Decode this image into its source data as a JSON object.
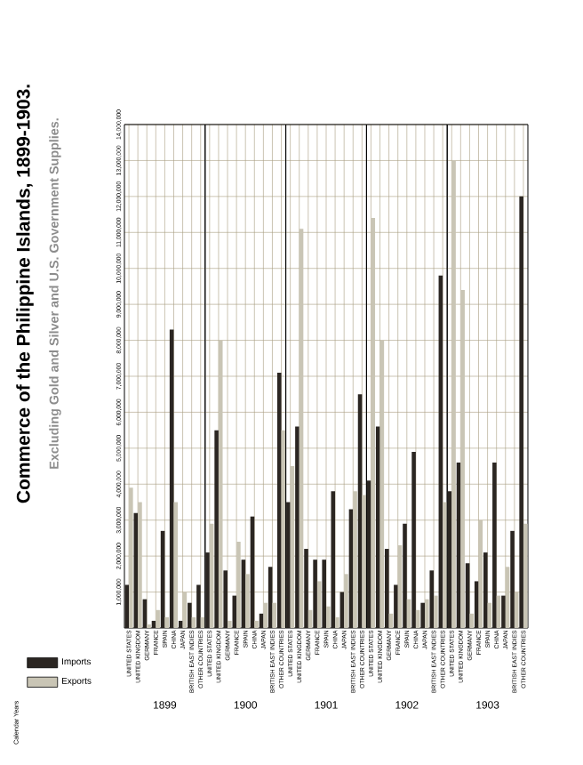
{
  "chart_data": [
    {
      "type": "bar",
      "title": "Commerce of the Philippine Islands, 1899-1903.",
      "subtitle": "Excluding Gold and Silver and U.S. Government Supplies.",
      "annotations": [
        "Calendar Years"
      ],
      "legend": "bottom left",
      "grid": true,
      "xlabel": "1899",
      "categories": [
        "UNITED STATES",
        "UNITED KINGDOM",
        "GERMANY",
        "FRANCE",
        "SPAIN",
        "CHINA",
        "JAPAN",
        "BRITISH EAST INDIES",
        "OTHER COUNTRIES"
      ],
      "series": [
        {
          "name": "Imports",
          "color": "#2b2622",
          "values": [
            1200000,
            3200000,
            800000,
            200000,
            2700000,
            8300000,
            200000,
            700000,
            1200000
          ]
        },
        {
          "name": "Exports",
          "color": "#c9c5b5",
          "values": [
            3900000,
            3500000,
            100000,
            500000,
            300000,
            3500000,
            1000000,
            300000,
            300000
          ]
        }
      ],
      "ylim": [
        0,
        14000000
      ],
      "yticks": [
        {
          "value": 1000000,
          "label": "1,000,000"
        },
        {
          "value": 2000000,
          "label": "2,000,000"
        },
        {
          "value": 3000000,
          "label": "3,000,000"
        },
        {
          "value": 4000000,
          "label": "4,000,000"
        },
        {
          "value": 5000000,
          "label": "5,000,000"
        },
        {
          "value": 6000000,
          "label": "6,000,000"
        },
        {
          "value": 7000000,
          "label": "7,000,000"
        },
        {
          "value": 8000000,
          "label": "8,000,000"
        },
        {
          "value": 9000000,
          "label": "9,000,000"
        },
        {
          "value": 10000000,
          "label": "10,000,000"
        },
        {
          "value": 11000000,
          "label": "11,000,000"
        },
        {
          "value": 12000000,
          "label": "12,000,000"
        },
        {
          "value": 13000000,
          "label": "13,000,000"
        },
        {
          "value": 14000000,
          "label": "14,000,000"
        }
      ]
    },
    {
      "type": "bar",
      "grid": true,
      "xlabel": "1900",
      "tick_labels": "x",
      "categories": [
        "UNITED STATES",
        "UNITED KINGDOM",
        "GERMANY",
        "FRANCE",
        "SPAIN",
        "CHINA",
        "JAPAN",
        "BRITISH EAST INDIES",
        "OTHER COUNTRIES"
      ],
      "series": [
        {
          "color": "#2b2622",
          "values": [
            2100000,
            5500000,
            1600000,
            900000,
            1900000,
            3100000,
            400000,
            1700000,
            7100000
          ]
        },
        {
          "color": "#c9c5b5",
          "values": [
            2900000,
            8000000,
            200000,
            2400000,
            1500000,
            200000,
            700000,
            700000,
            5500000
          ]
        }
      ],
      "ylim": [
        0,
        14000000
      ]
    },
    {
      "type": "bar",
      "grid": true,
      "xlabel": "1901",
      "tick_labels": "x",
      "categories": [
        "UNITED STATES",
        "UNITED KINGDOM",
        "GERMANY",
        "FRANCE",
        "SPAIN",
        "CHINA",
        "JAPAN",
        "BRITISH EAST INDIES",
        "OTHER COUNTRIES"
      ],
      "series": [
        {
          "color": "#2b2622",
          "values": [
            3500000,
            5600000,
            2200000,
            1900000,
            1900000,
            3800000,
            1000000,
            3300000,
            6500000
          ]
        },
        {
          "color": "#c9c5b5",
          "values": [
            4500000,
            11100000,
            500000,
            1300000,
            600000,
            300000,
            1500000,
            3800000,
            3700000
          ]
        }
      ],
      "ylim": [
        0,
        14000000
      ]
    },
    {
      "type": "bar",
      "grid": true,
      "xlabel": "1902",
      "tick_labels": "x",
      "categories": [
        "UNITED STATES",
        "UNITED KINGDOM",
        "GERMANY",
        "FRANCE",
        "SPAIN",
        "CHINA",
        "JAPAN",
        "BRITISH EAST INDIES",
        "OTHER COUNTRIES"
      ],
      "series": [
        {
          "color": "#2b2622",
          "values": [
            4100000,
            5600000,
            2200000,
            1200000,
            2900000,
            4900000,
            700000,
            1600000,
            9800000
          ]
        },
        {
          "color": "#c9c5b5",
          "values": [
            11400000,
            8000000,
            400000,
            2300000,
            800000,
            500000,
            800000,
            900000,
            3500000
          ]
        }
      ],
      "ylim": [
        0,
        14000000
      ]
    },
    {
      "type": "bar",
      "grid": true,
      "xlabel": "1903",
      "tick_labels": "x",
      "categories": [
        "UNITED STATES",
        "UNITED KINGDOM",
        "GERMANY",
        "FRANCE",
        "SPAIN",
        "CHINA",
        "JAPAN",
        "BRITISH EAST INDIES",
        "OTHER COUNTRIES"
      ],
      "series": [
        {
          "color": "#2b2622",
          "values": [
            3800000,
            4600000,
            1800000,
            1300000,
            2100000,
            4600000,
            900000,
            2700000,
            12000000
          ]
        },
        {
          "color": "#c9c5b5",
          "values": [
            13000000,
            9400000,
            400000,
            3000000,
            700000,
            900000,
            1700000,
            1000000,
            2900000
          ]
        }
      ],
      "ylim": [
        0,
        14000000
      ]
    }
  ]
}
